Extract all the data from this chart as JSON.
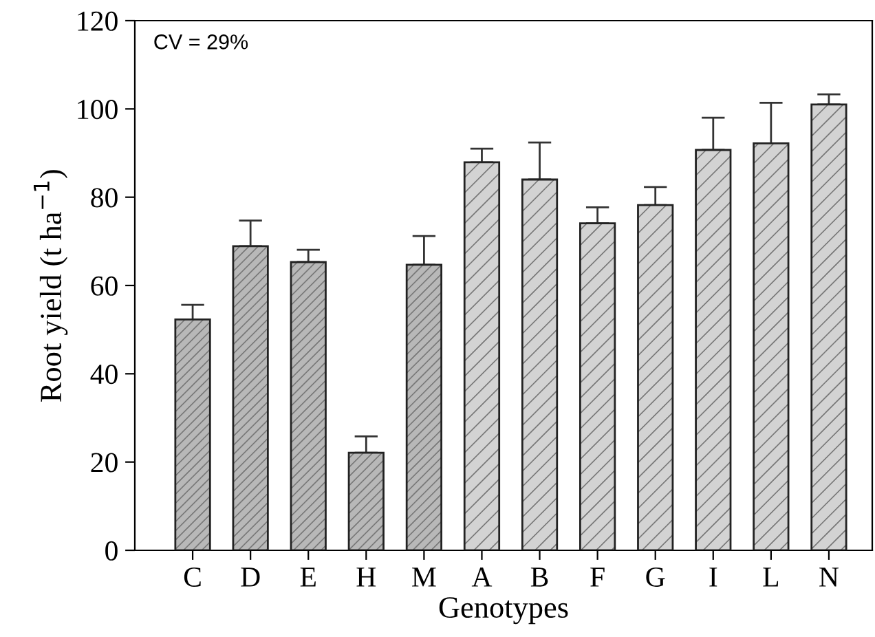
{
  "chart_data": {
    "type": "bar",
    "xlabel": "Genotypes",
    "ylabel": "Root yield (t ha$^{−1}$)",
    "categories": [
      "C",
      "D",
      "E",
      "H",
      "M",
      "A",
      "B",
      "F",
      "G",
      "I",
      "L",
      "N"
    ],
    "values": [
      52.3,
      68.9,
      65.3,
      22.1,
      64.7,
      87.9,
      84.0,
      74.1,
      78.2,
      90.7,
      92.2,
      101.0
    ],
    "errors": [
      [
        52.3,
        55.6
      ],
      [
        68.9,
        74.7
      ],
      [
        65.3,
        68.1
      ],
      [
        22.1,
        25.8
      ],
      [
        64.7,
        71.2
      ],
      [
        87.9,
        91.0
      ],
      [
        84.0,
        92.4
      ],
      [
        74.1,
        77.7
      ],
      [
        78.2,
        82.3
      ],
      [
        90.7,
        98.0
      ],
      [
        92.2,
        101.4
      ],
      [
        101.0,
        103.3
      ]
    ],
    "colors": [
      "#b8b8b8",
      "#b8b8b8",
      "#b8b8b8",
      "#b8b8b8",
      "#b8b8b8",
      "#d3d3d3",
      "#d3d3d3",
      "#d3d3d3",
      "#d3d3d3",
      "#d3d3d3",
      "#d3d3d3",
      "#d3d3d3"
    ],
    "ylim": [
      0,
      120
    ],
    "yticks": [
      0,
      20,
      40,
      60,
      80,
      100,
      120
    ],
    "grid": false,
    "legend": false,
    "annotations": [
      "CV = 29%"
    ]
  }
}
